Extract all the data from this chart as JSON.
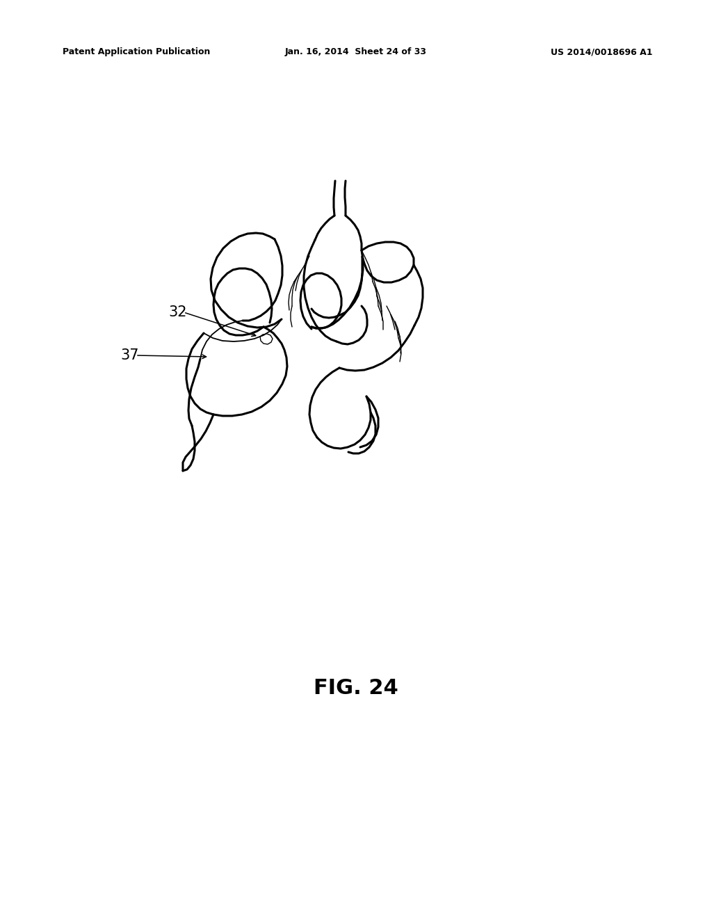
{
  "bg_color": "#ffffff",
  "header_left": "Patent Application Publication",
  "header_center": "Jan. 16, 2014  Sheet 24 of 33",
  "header_right": "US 2014/0018696 A1",
  "fig_label": "FIG. 24",
  "label_32": "32",
  "label_37": "37"
}
